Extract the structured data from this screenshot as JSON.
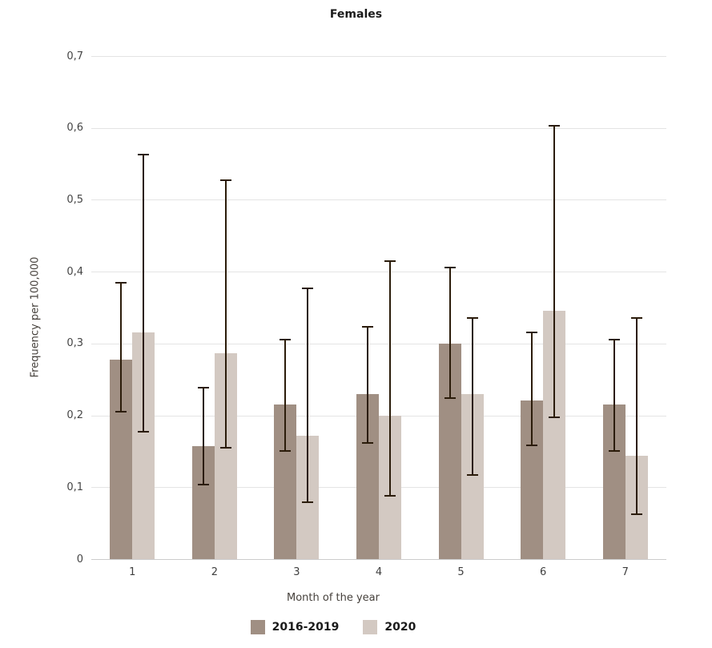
{
  "chart_data": {
    "type": "bar",
    "title": "Females",
    "xlabel": "Month of the year",
    "ylabel": "Frequency per 100,000",
    "ylim": [
      0,
      0.7
    ],
    "y_ticks": [
      "0,7",
      "0,6",
      "0,5",
      "0,4",
      "0,3",
      "0,2",
      "0,1",
      "0"
    ],
    "decimal_separator": "comma",
    "grid": true,
    "legend_position": "bottom",
    "error_bars": true,
    "categories": [
      "1",
      "2",
      "3",
      "4",
      "5",
      "6",
      "7"
    ],
    "series": [
      {
        "name": "2016-2019",
        "color": "#a08f83",
        "values": [
          0.278,
          0.157,
          0.215,
          0.23,
          0.3,
          0.221,
          0.215
        ],
        "ci_low": [
          0.205,
          0.104,
          0.151,
          0.162,
          0.224,
          0.158,
          0.151
        ],
        "ci_high": [
          0.384,
          0.238,
          0.305,
          0.323,
          0.406,
          0.315,
          0.305
        ]
      },
      {
        "name": "2020",
        "color": "#d3c9c2",
        "values": [
          0.315,
          0.287,
          0.172,
          0.2,
          0.23,
          0.345,
          0.144
        ],
        "ci_low": [
          0.177,
          0.155,
          0.079,
          0.088,
          0.117,
          0.197,
          0.062
        ],
        "ci_high": [
          0.563,
          0.527,
          0.377,
          0.415,
          0.336,
          0.603,
          0.336
        ]
      }
    ],
    "colors": {
      "error_bar": "#2b1c0a",
      "gridline": "#e4e4e4",
      "axis_line": "#cccccc"
    }
  }
}
